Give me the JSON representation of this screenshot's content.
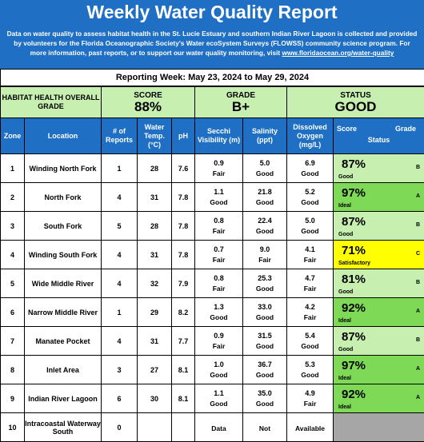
{
  "header": {
    "title": "Weekly Water Quality Report",
    "desc_1": "Data on water quality to assess habitat health in the St. Lucie Estuary and southern Indian River Lagoon is collected and provided by volunteers for the Florida Oceanographic Society's Water ecoSystem Surveys (FLOWSS) community science program. For more information, past reports, or to support our water quality monitoring, visit ",
    "link": "www.floridaocean.org/water-quality"
  },
  "reporting_week": "Reporting Week: May 23, 2024 to May 29, 2024",
  "summary": {
    "habitat_label": "HABITAT HEALTH OVERALL GRADE",
    "score_label": "SCORE",
    "score_value": "88%",
    "grade_label": "GRADE",
    "grade_value": "B+",
    "status_label": "STATUS",
    "status_value": "GOOD"
  },
  "columns": {
    "zone": "Zone",
    "location": "Location",
    "reports": "# of Reports",
    "temp": "Water Temp. (°C)",
    "ph": "pH",
    "secchi": "Secchi Visibility (m)",
    "salinity": "Salinity (ppt)",
    "oxygen": "Dissolved Oxygen (mg/L)",
    "score": "Score",
    "grade": "Grade",
    "status": "Status"
  },
  "rows": [
    {
      "zone": "1",
      "location": "Winding North Fork",
      "reports": "1",
      "temp": "28",
      "ph": "7.6",
      "secchi": "0.9",
      "secchi_status": "Fair",
      "salinity": "5.0",
      "salinity_status": "Good",
      "oxygen": "6.9",
      "oxygen_status": "Good",
      "score": "87%",
      "score_status": "Good",
      "grade": "B",
      "color": "good"
    },
    {
      "zone": "2",
      "location": "North Fork",
      "reports": "4",
      "temp": "31",
      "ph": "7.8",
      "secchi": "1.1",
      "secchi_status": "Good",
      "salinity": "21.8",
      "salinity_status": "Good",
      "oxygen": "5.2",
      "oxygen_status": "Good",
      "score": "97%",
      "score_status": "Ideal",
      "grade": "A",
      "color": "ideal"
    },
    {
      "zone": "3",
      "location": "South Fork",
      "reports": "5",
      "temp": "28",
      "ph": "7.8",
      "secchi": "0.8",
      "secchi_status": "Fair",
      "salinity": "22.4",
      "salinity_status": "Good",
      "oxygen": "5.0",
      "oxygen_status": "Good",
      "score": "87%",
      "score_status": "Good",
      "grade": "B",
      "color": "good"
    },
    {
      "zone": "4",
      "location": "Winding South Fork",
      "reports": "4",
      "temp": "31",
      "ph": "7.8",
      "secchi": "0.7",
      "secchi_status": "Fair",
      "salinity": "9.0",
      "salinity_status": "Fair",
      "oxygen": "4.1",
      "oxygen_status": "Fair",
      "score": "71%",
      "score_status": "Satisfactory",
      "grade": "C",
      "color": "sat"
    },
    {
      "zone": "5",
      "location": "Wide Middle River",
      "reports": "4",
      "temp": "32",
      "ph": "7.9",
      "secchi": "0.8",
      "secchi_status": "Fair",
      "salinity": "25.3",
      "salinity_status": "Good",
      "oxygen": "4.7",
      "oxygen_status": "Fair",
      "score": "81%",
      "score_status": "Good",
      "grade": "B",
      "color": "good"
    },
    {
      "zone": "6",
      "location": "Narrow Middle River",
      "reports": "1",
      "temp": "29",
      "ph": "8.2",
      "secchi": "1.3",
      "secchi_status": "Good",
      "salinity": "33.0",
      "salinity_status": "Good",
      "oxygen": "4.2",
      "oxygen_status": "Fair",
      "score": "92%",
      "score_status": "Ideal",
      "grade": "A",
      "color": "ideal"
    },
    {
      "zone": "7",
      "location": "Manatee Pocket",
      "reports": "4",
      "temp": "31",
      "ph": "7.7",
      "secchi": "0.9",
      "secchi_status": "Fair",
      "salinity": "31.5",
      "salinity_status": "Good",
      "oxygen": "5.4",
      "oxygen_status": "Good",
      "score": "87%",
      "score_status": "Good",
      "grade": "B",
      "color": "good"
    },
    {
      "zone": "8",
      "location": "Inlet Area",
      "reports": "3",
      "temp": "27",
      "ph": "8.1",
      "secchi": "1.0",
      "secchi_status": "Good",
      "salinity": "36.7",
      "salinity_status": "Good",
      "oxygen": "5.3",
      "oxygen_status": "Good",
      "score": "97%",
      "score_status": "Ideal",
      "grade": "A",
      "color": "ideal"
    },
    {
      "zone": "9",
      "location": "Indian River Lagoon",
      "reports": "6",
      "temp": "30",
      "ph": "8.1",
      "secchi": "1.1",
      "secchi_status": "Good",
      "salinity": "35.0",
      "salinity_status": "Good",
      "oxygen": "4.9",
      "oxygen_status": "Fair",
      "score": "92%",
      "score_status": "Ideal",
      "grade": "A",
      "color": "ideal"
    },
    {
      "zone": "10",
      "location": "Intracoastal Waterway South",
      "reports": "0",
      "temp": "",
      "ph": "",
      "secchi": "",
      "secchi_status": "Data",
      "salinity": "",
      "salinity_status": "Not",
      "oxygen": "",
      "oxygen_status": "Available",
      "score": "",
      "score_status": "",
      "grade": "",
      "color": "none"
    }
  ]
}
